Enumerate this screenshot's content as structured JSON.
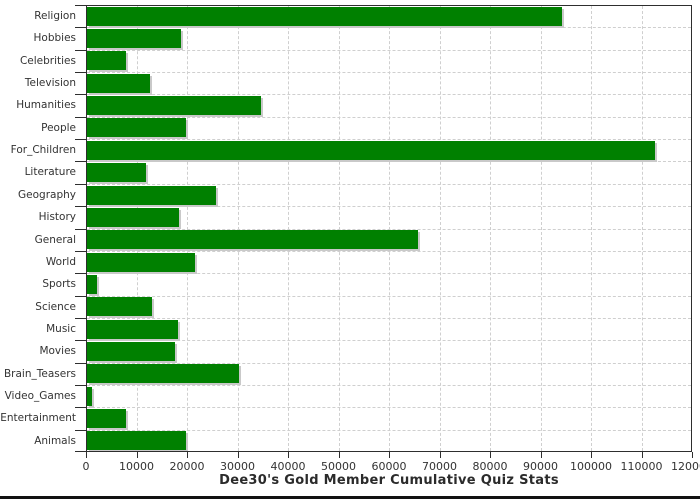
{
  "chart_data": {
    "type": "bar",
    "orientation": "horizontal",
    "title": "Dee30's Gold Member Cumulative Quiz Stats",
    "xlabel": "",
    "ylabel": "",
    "categories": [
      "Religion",
      "Hobbies",
      "Celebrities",
      "Television",
      "Humanities",
      "People",
      "For_Children",
      "Literature",
      "Geography",
      "History",
      "General",
      "World",
      "Sports",
      "Science",
      "Music",
      "Movies",
      "Brain_Teasers",
      "Video_Games",
      "Entertainment",
      "Animals"
    ],
    "values": [
      94000,
      18600,
      7800,
      12500,
      34500,
      19600,
      112500,
      11700,
      25600,
      18300,
      65500,
      21400,
      2000,
      12800,
      18000,
      17500,
      30000,
      1000,
      7800,
      19700
    ],
    "xlim": [
      0,
      120000
    ],
    "xticks": [
      0,
      10000,
      20000,
      30000,
      40000,
      50000,
      60000,
      70000,
      80000,
      90000,
      100000,
      110000,
      120000
    ],
    "grid": true,
    "legend": false,
    "bar_color": "#008000",
    "shadow_color": "#c9c9c9",
    "grid_color": "#cfcfcf",
    "axis_color": "#2e2e2e",
    "text_color": "#333333",
    "background": "#ffffff"
  }
}
